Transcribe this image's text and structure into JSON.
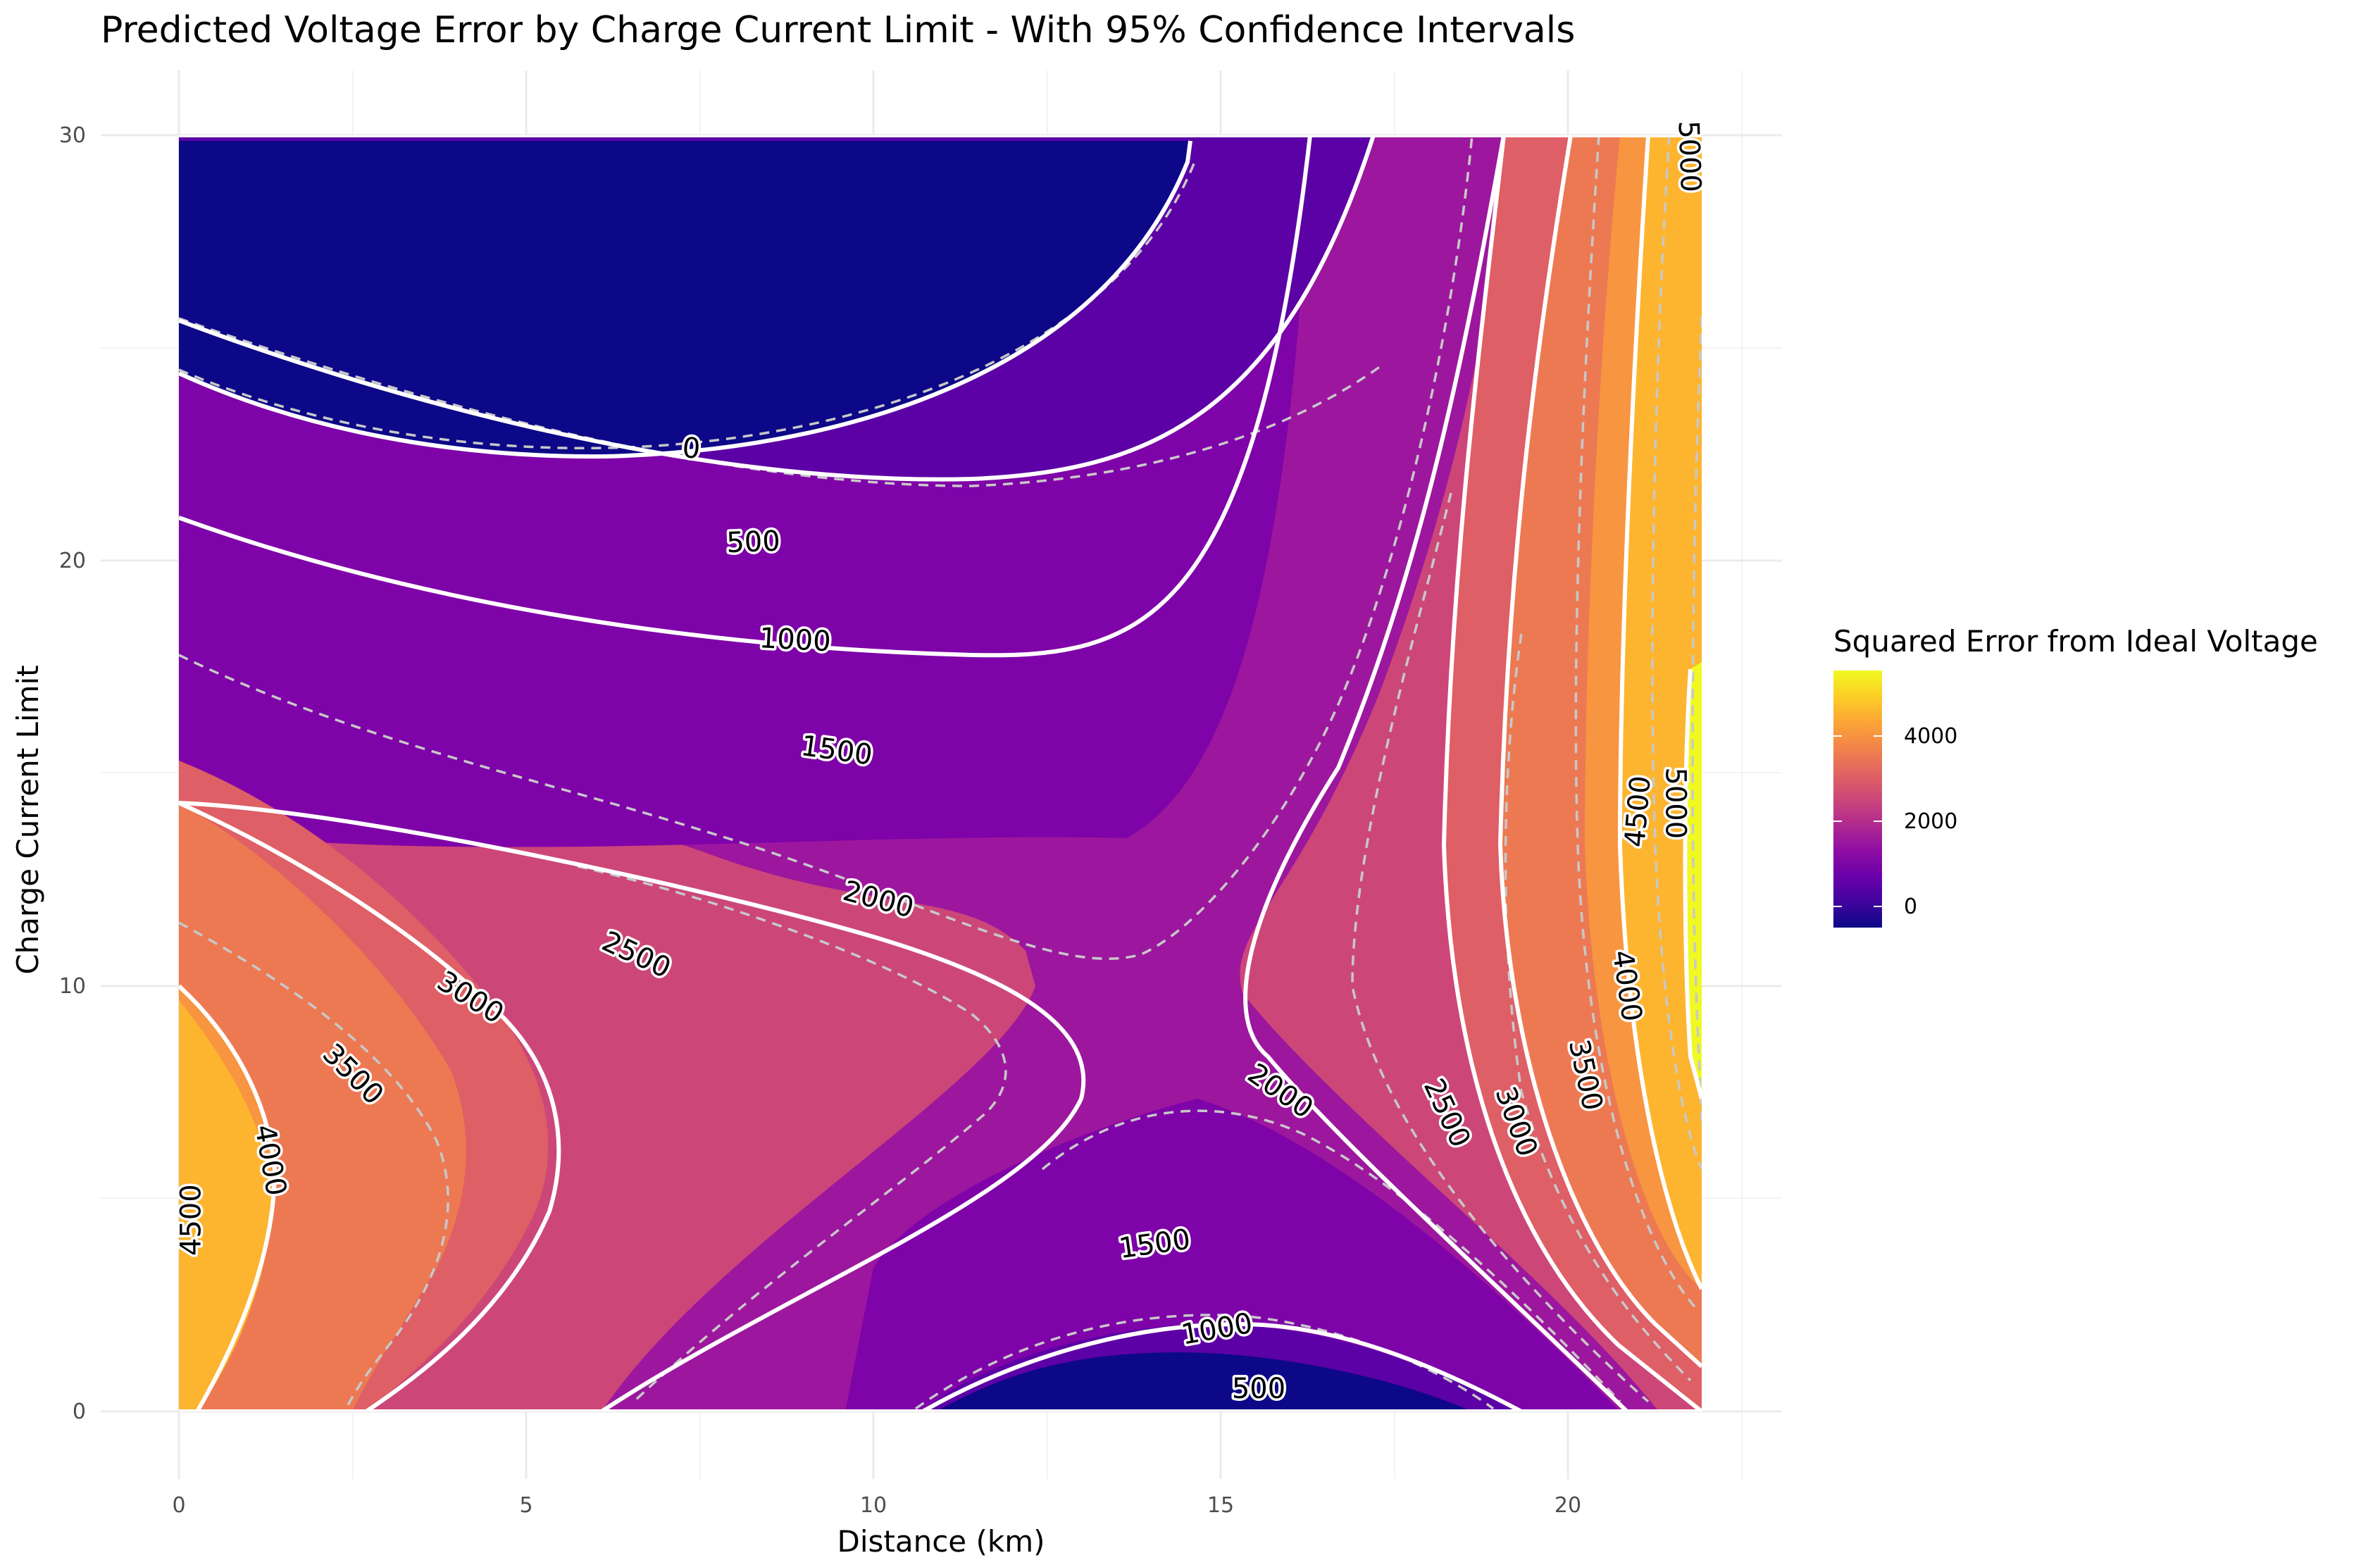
{
  "chart_data": {
    "type": "contour",
    "title": "Predicted Voltage Error by Charge Current Limit - With 95% Confidence Intervals",
    "xlabel": "Distance (km)",
    "ylabel": "Charge Current Limit",
    "xlim": [
      0,
      22
    ],
    "ylim": [
      0,
      30
    ],
    "x_ticks": [
      "0",
      "5",
      "10",
      "15",
      "20"
    ],
    "y_ticks": [
      "0",
      "10",
      "20",
      "30"
    ],
    "grid": true,
    "legend": {
      "title": "Squared Error from Ideal Voltage",
      "position": "right",
      "ticks": [
        "0",
        "2000",
        "4000"
      ],
      "scale": "plasma"
    },
    "levels": [
      0,
      500,
      1000,
      1500,
      2000,
      2500,
      3000,
      3500,
      4000,
      4500,
      5000
    ],
    "level_colors": [
      "#0d0887",
      "#5c01a6",
      "#7e03a8",
      "#9c179e",
      "#b52f8c",
      "#cc4778",
      "#de5f65",
      "#ed7953",
      "#f89540",
      "#fdb42f",
      "#f0f921"
    ],
    "contour_labels": [
      {
        "text": "0",
        "x": 7.4,
        "y": 22.6
      },
      {
        "text": "500",
        "x": 8.3,
        "y": 20.4
      },
      {
        "text": "1000",
        "x": 8.9,
        "y": 18.1
      },
      {
        "text": "1500",
        "x": 9.5,
        "y": 15.5
      },
      {
        "text": "2000",
        "x": 10.1,
        "y": 12.0
      },
      {
        "text": "2500",
        "x": 6.6,
        "y": 10.7
      },
      {
        "text": "3000",
        "x": 4.2,
        "y": 9.7
      },
      {
        "text": "3500",
        "x": 2.5,
        "y": 7.9
      },
      {
        "text": "4000",
        "x": 1.3,
        "y": 5.9
      },
      {
        "text": "4500",
        "x": 0.2,
        "y": 4.5
      },
      {
        "text": "2000",
        "x": 15.9,
        "y": 7.5
      },
      {
        "text": "2500",
        "x": 18.3,
        "y": 7.0
      },
      {
        "text": "3000",
        "x": 19.3,
        "y": 6.8
      },
      {
        "text": "3500",
        "x": 20.3,
        "y": 7.9
      },
      {
        "text": "4000",
        "x": 20.9,
        "y": 10.0
      },
      {
        "text": "4500",
        "x": 21.1,
        "y": 14.1
      },
      {
        "text": "5000",
        "x": 21.6,
        "y": 14.3
      },
      {
        "text": "5000",
        "x": 21.8,
        "y": 29.5
      },
      {
        "text": "1500",
        "x": 14.1,
        "y": 3.9
      },
      {
        "text": "1000",
        "x": 15.0,
        "y": 1.9
      },
      {
        "text": "500",
        "x": 15.6,
        "y": 0.5
      }
    ]
  }
}
